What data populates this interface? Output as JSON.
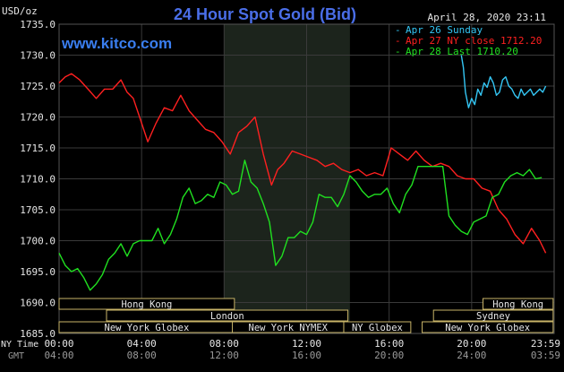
{
  "header": {
    "unit": "USD/oz",
    "title": "24 Hour Spot Gold (Bid)",
    "datetime": "April 28, 2020 23:11",
    "site": "www.kitco.com"
  },
  "colors": {
    "background": "#000000",
    "grid": "#3a3a3a",
    "highlight": "#1c241c",
    "title": "#4a6ee8",
    "site": "#3a7ef0",
    "text": "#e6e6e6",
    "sunday": "#34c6f4",
    "nyclose": "#ff2020",
    "last": "#20e020",
    "band_fill": "#000000",
    "band_border": "#c8b468",
    "band_text": "#e6e6e6"
  },
  "chart_data": {
    "type": "line",
    "title": "24 Hour Spot Gold (Bid)",
    "ylabel": "USD/oz",
    "xlabel": "",
    "ylim": [
      1685,
      1735
    ],
    "xlim": [
      0,
      24
    ],
    "y_ticks": [
      "1735.0",
      "1730.0",
      "1725.0",
      "1720.0",
      "1715.0",
      "1710.0",
      "1705.0",
      "1700.0",
      "1695.0",
      "1690.0",
      "1685.0"
    ],
    "x_ticks": [
      {
        "ny": "00:00",
        "gmt": "04:00"
      },
      {
        "ny": "04:00",
        "gmt": "08:00"
      },
      {
        "ny": "08:00",
        "gmt": "12:00"
      },
      {
        "ny": "12:00",
        "gmt": "16:00"
      },
      {
        "ny": "16:00",
        "gmt": "20:00"
      },
      {
        "ny": "20:00",
        "gmt": "24:00"
      },
      {
        "ny": "23:59",
        "gmt": "03:59"
      }
    ],
    "x_axis_labels": {
      "ny": "NY Time",
      "gmt": "GMT"
    },
    "grid": true,
    "legend_position": "top-right",
    "highlight_range": [
      8.0,
      14.1
    ],
    "series": [
      {
        "name": "Apr 26 Sunday",
        "color": "#34c6f4",
        "x": [
          19.5,
          19.6,
          19.7,
          19.85,
          20.0,
          20.15,
          20.3,
          20.45,
          20.6,
          20.75,
          20.9,
          21.05,
          21.2,
          21.35,
          21.5,
          21.65,
          21.8,
          21.95,
          22.1,
          22.25,
          22.4,
          22.55,
          22.7,
          22.85,
          23.0,
          23.15,
          23.3,
          23.45,
          23.59
        ],
        "values": [
          1730.0,
          1728.0,
          1724.0,
          1721.5,
          1723.0,
          1722.0,
          1724.5,
          1723.5,
          1725.5,
          1724.8,
          1726.5,
          1725.5,
          1723.5,
          1724.0,
          1726.0,
          1726.5,
          1725.0,
          1724.5,
          1723.5,
          1723.0,
          1724.5,
          1723.5,
          1724.0,
          1724.5,
          1723.5,
          1724.0,
          1724.5,
          1724.0,
          1725.0
        ]
      },
      {
        "name": "Apr 27 NY close 1712.20",
        "color": "#ff2020",
        "x": [
          0.0,
          0.3,
          0.6,
          1.0,
          1.4,
          1.8,
          2.2,
          2.6,
          3.0,
          3.3,
          3.6,
          3.9,
          4.3,
          4.7,
          5.1,
          5.5,
          5.9,
          6.3,
          6.7,
          7.1,
          7.5,
          7.9,
          8.3,
          8.7,
          9.1,
          9.5,
          9.9,
          10.3,
          10.6,
          10.9,
          11.3,
          11.7,
          12.1,
          12.5,
          12.9,
          13.3,
          13.7,
          14.1,
          14.5,
          14.9,
          15.3,
          15.7,
          16.1,
          16.5,
          16.9,
          17.3,
          17.7,
          18.1,
          18.5,
          18.9,
          19.3,
          19.7,
          20.1,
          20.5,
          20.9,
          21.3,
          21.7,
          22.1,
          22.5,
          22.9,
          23.3,
          23.59
        ],
        "values": [
          1725.5,
          1726.5,
          1727.0,
          1726.0,
          1724.5,
          1723.0,
          1724.5,
          1724.5,
          1726.0,
          1724.0,
          1723.0,
          1720.0,
          1716.0,
          1719.0,
          1721.5,
          1721.0,
          1723.5,
          1721.0,
          1719.5,
          1718.0,
          1717.5,
          1716.0,
          1714.0,
          1717.5,
          1718.5,
          1720.0,
          1714.0,
          1709.0,
          1711.5,
          1712.5,
          1714.5,
          1714.0,
          1713.5,
          1713.0,
          1712.0,
          1712.5,
          1711.5,
          1711.0,
          1711.5,
          1710.5,
          1711.0,
          1710.5,
          1715.0,
          1714.0,
          1713.0,
          1714.5,
          1713.0,
          1712.0,
          1712.5,
          1712.0,
          1710.5,
          1710.0,
          1710.0,
          1708.5,
          1708.0,
          1705.0,
          1703.5,
          1701.0,
          1699.5,
          1702.0,
          1700.0,
          1698.0
        ]
      },
      {
        "name": "Apr 28 Last 1710.20",
        "color": "#20e020",
        "x": [
          0.0,
          0.3,
          0.6,
          0.9,
          1.2,
          1.5,
          1.8,
          2.1,
          2.4,
          2.7,
          3.0,
          3.3,
          3.6,
          3.9,
          4.2,
          4.5,
          4.8,
          5.1,
          5.4,
          5.7,
          6.0,
          6.3,
          6.6,
          6.9,
          7.2,
          7.5,
          7.8,
          8.1,
          8.4,
          8.7,
          9.0,
          9.3,
          9.6,
          9.9,
          10.2,
          10.5,
          10.8,
          11.1,
          11.4,
          11.7,
          12.0,
          12.3,
          12.6,
          12.9,
          13.2,
          13.5,
          13.8,
          14.1,
          14.4,
          14.7,
          15.0,
          15.3,
          15.6,
          15.9,
          16.2,
          16.5,
          16.8,
          17.1,
          17.4,
          17.7,
          18.0,
          18.3,
          18.6,
          18.9,
          19.2,
          19.5,
          19.8,
          20.1,
          20.4,
          20.7,
          21.0,
          21.3,
          21.6,
          21.9,
          22.2,
          22.5,
          22.8,
          23.1,
          23.4
        ],
        "values": [
          1698.0,
          1696.0,
          1695.0,
          1695.5,
          1694.0,
          1692.0,
          1693.0,
          1694.5,
          1697.0,
          1698.0,
          1699.5,
          1697.5,
          1699.5,
          1700.0,
          1700.0,
          1700.0,
          1702.0,
          1699.5,
          1701.0,
          1703.5,
          1707.0,
          1708.5,
          1706.0,
          1706.5,
          1707.5,
          1707.0,
          1709.5,
          1709.0,
          1707.5,
          1708.0,
          1713.0,
          1709.5,
          1708.5,
          1706.0,
          1703.0,
          1696.0,
          1697.5,
          1700.5,
          1700.5,
          1701.5,
          1701.0,
          1703.0,
          1707.5,
          1707.0,
          1707.0,
          1705.5,
          1707.5,
          1710.5,
          1709.5,
          1708.0,
          1707.0,
          1707.5,
          1707.5,
          1708.5,
          1706.0,
          1704.5,
          1707.5,
          1709.0,
          1712.0,
          1712.0,
          1712.0,
          1712.0,
          1712.0,
          1704.0,
          1702.5,
          1701.5,
          1701.0,
          1703.0,
          1703.5,
          1704.0,
          1707.0,
          1707.5,
          1709.5,
          1710.5,
          1711.0,
          1710.5,
          1711.5,
          1710.0,
          1710.2
        ]
      }
    ]
  },
  "sessions": {
    "rows": [
      [
        {
          "label": "Hong Kong",
          "start": 0.0,
          "end": 8.5
        },
        {
          "label": "Hong Kong",
          "start": 20.55,
          "end": 23.95
        }
      ],
      [
        {
          "label": "London",
          "start": 2.3,
          "end": 14.0
        },
        {
          "label": "Sydney",
          "start": 18.15,
          "end": 23.95
        }
      ],
      [
        {
          "label": "New York Globex",
          "start": 0.0,
          "end": 8.5
        },
        {
          "label": "New York NYMEX",
          "start": 8.4,
          "end": 13.8
        },
        {
          "label": "NY Globex",
          "start": 13.8,
          "end": 17.05
        },
        {
          "label": "New York Globex",
          "start": 17.6,
          "end": 23.95
        }
      ]
    ]
  }
}
